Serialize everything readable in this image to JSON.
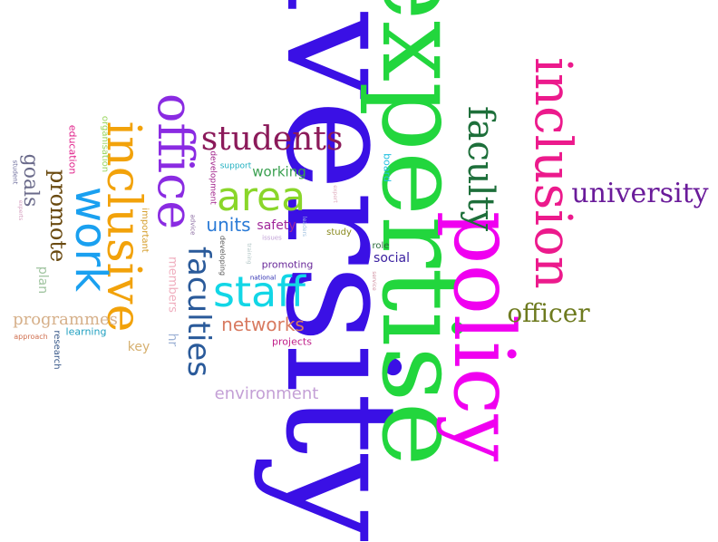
{
  "words": [
    {
      "id": "diversity",
      "text": "diversity",
      "color": "#3a10e5"
    },
    {
      "id": "expertise",
      "text": "expertise",
      "color": "#22d63d"
    },
    {
      "id": "policy",
      "text": "policy",
      "color": "#f000f0"
    },
    {
      "id": "inclusion",
      "text": "inclusion",
      "color": "#ec1a8c"
    },
    {
      "id": "university",
      "text": "university",
      "color": "#6a1b9a"
    },
    {
      "id": "officer",
      "text": "officer",
      "color": "#6d7a1e"
    },
    {
      "id": "faculty",
      "text": "faculty",
      "color": "#1d6f3a"
    },
    {
      "id": "office",
      "text": "office",
      "color": "#8a2be2"
    },
    {
      "id": "inclusive",
      "text": "inclusive",
      "color": "#f2a20a"
    },
    {
      "id": "work",
      "text": "work",
      "color": "#1aa0f0"
    },
    {
      "id": "students",
      "text": "students",
      "color": "#8b1a5a"
    },
    {
      "id": "area",
      "text": "area",
      "color": "#8ad62a"
    },
    {
      "id": "staff",
      "text": "staff",
      "color": "#12d6e6"
    },
    {
      "id": "faculties",
      "text": "faculties",
      "color": "#2a5a9a"
    },
    {
      "id": "units",
      "text": "units",
      "color": "#2a7ad6"
    },
    {
      "id": "safety",
      "text": "safety",
      "color": "#a0289a"
    },
    {
      "id": "working",
      "text": "working",
      "color": "#3aa050"
    },
    {
      "id": "networks",
      "text": "networks",
      "color": "#d87a60"
    },
    {
      "id": "environment",
      "text": "environment",
      "color": "#c4a0d6"
    },
    {
      "id": "promote",
      "text": "promote",
      "color": "#6a4a10"
    },
    {
      "id": "goals",
      "text": "goals",
      "color": "#6a6a8a"
    },
    {
      "id": "programmes",
      "text": "programmes",
      "color": "#d6b08a"
    },
    {
      "id": "plan",
      "text": "plan",
      "color": "#a0c4a0"
    },
    {
      "id": "key",
      "text": "key",
      "color": "#d6b070"
    },
    {
      "id": "hr",
      "text": "hr",
      "color": "#a0b4d6"
    },
    {
      "id": "members",
      "text": "members",
      "color": "#f0b0c0"
    },
    {
      "id": "learning",
      "text": "learning",
      "color": "#20a0c0"
    },
    {
      "id": "research",
      "text": "research",
      "color": "#3a5a8a"
    },
    {
      "id": "approach",
      "text": "approach",
      "color": "#d07050"
    },
    {
      "id": "education",
      "text": "education",
      "color": "#e0208a"
    },
    {
      "id": "organisation",
      "text": "organisation",
      "color": "#9ad660"
    },
    {
      "id": "student",
      "text": "student",
      "color": "#6a6a9a"
    },
    {
      "id": "experts",
      "text": "experts",
      "color": "#d6a0c0"
    },
    {
      "id": "social",
      "text": "social",
      "color": "#3a20a0"
    },
    {
      "id": "role",
      "text": "role",
      "color": "#2a6a3a"
    },
    {
      "id": "projects",
      "text": "projects",
      "color": "#c0208a"
    },
    {
      "id": "promoting",
      "text": "promoting",
      "color": "#6a2a9a"
    },
    {
      "id": "national",
      "text": "national",
      "color": "#2a2ab0"
    },
    {
      "id": "board",
      "text": "board",
      "color": "#20c0e0"
    },
    {
      "id": "study",
      "text": "study",
      "color": "#8a8a20"
    },
    {
      "id": "support",
      "text": "support",
      "color": "#20b0c0"
    },
    {
      "id": "development",
      "text": "development",
      "color": "#a0208a"
    },
    {
      "id": "important",
      "text": "important",
      "color": "#d6a030"
    },
    {
      "id": "advice",
      "text": "advice",
      "color": "#8a6aa0"
    },
    {
      "id": "developing",
      "text": "developing",
      "color": "#5a5a5a"
    },
    {
      "id": "training",
      "text": "training",
      "color": "#b0c4c4"
    },
    {
      "id": "issues",
      "text": "issues",
      "color": "#c0a0d6"
    },
    {
      "id": "expert",
      "text": "expert",
      "color": "#e0b0c0"
    },
    {
      "id": "leaders",
      "text": "leaders",
      "color": "#a0c0e0"
    },
    {
      "id": "service",
      "text": "service",
      "color": "#d090a0"
    }
  ]
}
